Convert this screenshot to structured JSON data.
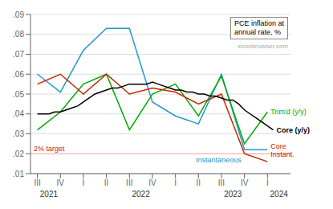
{
  "chart_data": {
    "type": "line",
    "xlim": [
      -0.3,
      11.0
    ],
    "xticks": [
      {
        "value": 0,
        "label": "III"
      },
      {
        "value": 1,
        "label": "IV"
      },
      {
        "value": 2,
        "label": "I"
      },
      {
        "value": 3,
        "label": "II"
      },
      {
        "value": 4,
        "label": "III"
      },
      {
        "value": 5,
        "label": "IV"
      },
      {
        "value": 6,
        "label": "I"
      },
      {
        "value": 7,
        "label": "II"
      },
      {
        "value": 8,
        "label": "III"
      },
      {
        "value": 9,
        "label": "IV"
      },
      {
        "value": 10,
        "label": "I"
      }
    ],
    "ylim": [
      0.01,
      0.09
    ],
    "yticks": [
      {
        "value": 0.01,
        "label": ".01"
      },
      {
        "value": 0.02,
        "label": ".02"
      },
      {
        "value": 0.03,
        "label": ".03"
      },
      {
        "value": 0.04,
        "label": ".04"
      },
      {
        "value": 0.05,
        "label": ".05"
      },
      {
        "value": 0.06,
        "label": ".06"
      },
      {
        "value": 0.07,
        "label": ".07"
      },
      {
        "value": 0.08,
        "label": ".08"
      },
      {
        "value": 0.09,
        "label": ".09"
      }
    ],
    "grid": true,
    "series": [
      {
        "name": "Instantaneous",
        "color": "#2299cc",
        "x": [
          0,
          1,
          2,
          3,
          4,
          5,
          6,
          7,
          8,
          9,
          10
        ],
        "values": [
          0.06,
          0.051,
          0.072,
          0.083,
          0.083,
          0.046,
          0.039,
          0.035,
          0.06,
          0.022,
          0.022
        ]
      },
      {
        "name": "Trim'd (y/y)",
        "color": "#00aa00",
        "x": [
          0,
          1,
          2,
          3,
          4,
          5,
          6,
          7,
          8,
          9,
          10
        ],
        "values": [
          0.032,
          0.041,
          0.055,
          0.06,
          0.032,
          0.05,
          0.055,
          0.039,
          0.059,
          0.025,
          0.041
        ]
      },
      {
        "name": "Core\nInstant.",
        "color": "#cc2200",
        "x": [
          0,
          1,
          2,
          3,
          4,
          5,
          6,
          7,
          8,
          9,
          10
        ],
        "values": [
          0.055,
          0.06,
          0.05,
          0.06,
          0.05,
          0.053,
          0.051,
          0.045,
          0.05,
          0.02,
          0.016
        ]
      },
      {
        "name": "Core (y/y)",
        "color": "#000000",
        "x": [
          0,
          0.25,
          0.5,
          0.75,
          1,
          1.25,
          1.5,
          1.75,
          2,
          2.25,
          2.5,
          2.75,
          3,
          3.25,
          3.5,
          3.75,
          4,
          4.25,
          4.5,
          4.75,
          5,
          5.25,
          5.5,
          5.75,
          6,
          6.25,
          6.5,
          6.75,
          7,
          7.25,
          7.5,
          7.75,
          8,
          8.25,
          8.5,
          8.75,
          9,
          9.25,
          9.5,
          9.75,
          10,
          10.25
        ],
        "values": [
          0.04,
          0.04,
          0.04,
          0.041,
          0.041,
          0.042,
          0.043,
          0.044,
          0.046,
          0.048,
          0.05,
          0.051,
          0.052,
          0.053,
          0.053,
          0.054,
          0.055,
          0.055,
          0.055,
          0.055,
          0.056,
          0.055,
          0.054,
          0.053,
          0.052,
          0.052,
          0.051,
          0.051,
          0.05,
          0.05,
          0.049,
          0.049,
          0.048,
          0.047,
          0.047,
          0.045,
          0.042,
          0.04,
          0.038,
          0.036,
          0.034,
          0.032
        ]
      }
    ],
    "annotations": [
      {
        "text": "2% target",
        "y": 0.02,
        "color": "#cc2200",
        "line_color": "#ffaaaa"
      },
      {
        "text": "2021",
        "x": 0.5
      },
      {
        "text": "2022",
        "x": 4.5
      },
      {
        "text": "2023",
        "x": 8.5
      },
      {
        "text": "2024",
        "x": 10.5
      },
      {
        "text": "PCE inflation at\nannual rate, %"
      },
      {
        "text": "econbrowser.com",
        "color": "#aaaaaa"
      }
    ]
  }
}
